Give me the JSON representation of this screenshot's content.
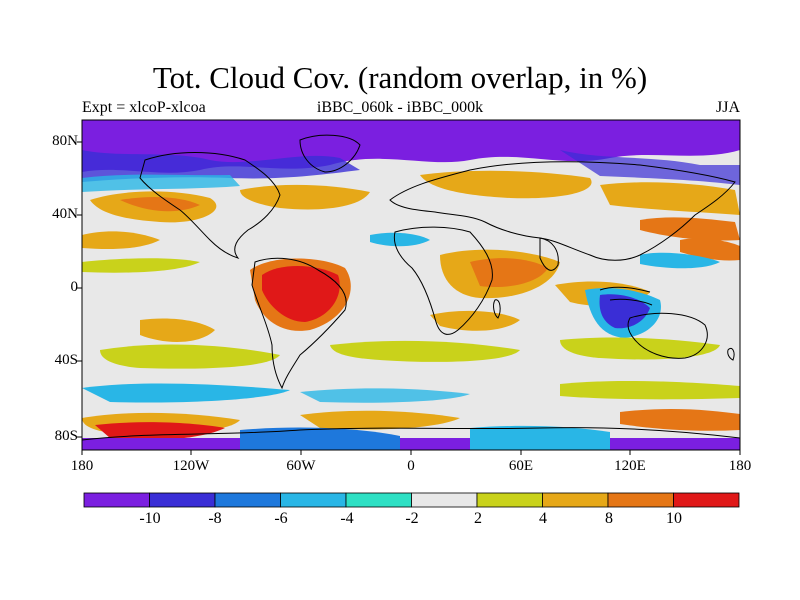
{
  "figure": {
    "title": "Tot. Cloud Cov. (random overlap, in %)",
    "subtitle_left": "Expt = xlcoP-xlcoa",
    "subtitle_center": "iBBC_060k - iBBC_000k",
    "subtitle_right": "JJA"
  },
  "axes": {
    "lat_labels": [
      "80N",
      "40N",
      "0",
      "40S",
      "80S"
    ],
    "lon_labels": [
      "180",
      "120W",
      "60W",
      "0",
      "60E",
      "120E",
      "180"
    ]
  },
  "colorbar": {
    "colors": [
      "#7b1fe0",
      "#3a2ed6",
      "#1e78dc",
      "#29b6e6",
      "#2ee0c4",
      "#e8e8e8",
      "#c9d21b",
      "#e6a818",
      "#e57616",
      "#e01818"
    ],
    "labels": [
      "-10",
      "-8",
      "-6",
      "-4",
      "-2",
      "2",
      "4",
      "8",
      "10"
    ]
  }
}
